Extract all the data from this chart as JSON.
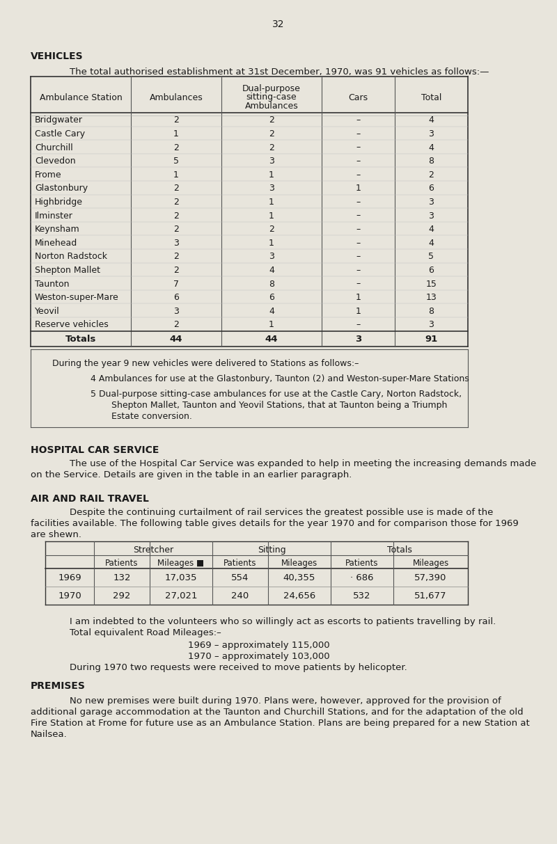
{
  "page_number": "32",
  "bg_color": "#e8e5dc",
  "text_color": "#1a1a1a",
  "section1_heading": "VEHICLES",
  "section1_intro": "The total authorised establishment at 31st December, 1970, was 91 vehicles as follows:—",
  "vehicles_table": {
    "headers": [
      "Ambulance Station",
      "Ambulances",
      "Dual-purpose\nsitting-case\nAmbulances",
      "Cars",
      "Total"
    ],
    "rows": [
      [
        "Bridgwater",
        "2",
        "2",
        "–",
        "4"
      ],
      [
        "Castle Cary",
        "1",
        "2",
        "–",
        "3"
      ],
      [
        "Churchill",
        "2",
        "2",
        "–",
        "4"
      ],
      [
        "Clevedon",
        "5",
        "3",
        "–",
        "8"
      ],
      [
        "Frome",
        "1",
        "1",
        "–",
        "2"
      ],
      [
        "Glastonbury",
        "2",
        "3",
        "1",
        "6"
      ],
      [
        "Highbridge",
        "2",
        "1",
        "–",
        "3"
      ],
      [
        "Ilminster",
        "2",
        "1",
        "–",
        "3"
      ],
      [
        "Keynsham",
        "2",
        "2",
        "–",
        "4"
      ],
      [
        "Minehead",
        "3",
        "1",
        "–",
        "4"
      ],
      [
        "Norton Radstock",
        "2",
        "3",
        "–",
        "5"
      ],
      [
        "Shepton Mallet",
        "2",
        "4",
        "–",
        "6"
      ],
      [
        "Taunton",
        "7",
        "8",
        "–",
        "15"
      ],
      [
        "Weston-super-Mare",
        "6",
        "6",
        "1",
        "13"
      ],
      [
        "Yeovil",
        "3",
        "4",
        "1",
        "8"
      ],
      [
        "Reserve vehicles",
        "2",
        "1",
        "–",
        "3"
      ]
    ],
    "totals_row": [
      "Totals",
      "44",
      "44",
      "3",
      "91"
    ]
  },
  "vehicles_note1": "During the year 9 new vehicles were delivered to Stations as follows:–",
  "vehicles_note2": "4 Ambulances for use at the Glastonbury, Taunton (2) and Weston-super-Mare Stations",
  "vehicles_note3a": "5 Dual-purpose sitting-case ambulances for use at the Castle Cary, Norton Radstock,",
  "vehicles_note3b": "Shepton Mallet, Taunton and Yeovil Stations, that at Taunton being a Triumph",
  "vehicles_note3c": "Estate conversion.",
  "section2_heading": "HOSPITAL CAR SERVICE",
  "section2_text1": "The use of the Hospital Car Service was expanded to help in meeting the increasing demands made",
  "section2_text2": "on the Service. Details are given in the table in an earlier paragraph.",
  "section3_heading": "AIR AND RAIL TRAVEL",
  "section3_text1": "Despite the continuing curtailment of rail services the greatest possible use is made of the",
  "section3_text2": "facilities available. The following table gives details for the year 1970 and for comparison those for 1969",
  "section3_text3": "are shewn.",
  "air_rail_rows": [
    [
      "1969",
      "132",
      "17,035",
      "554",
      "40,355",
      "· 686",
      "57,390"
    ],
    [
      "1970",
      "292",
      "27,021",
      "240",
      "24,656",
      "532",
      "51,677"
    ]
  ],
  "note_rail1": "I am indebted to the volunteers who so willingly act as escorts to patients travelling by rail.",
  "note_rail2": "Total equivalent Road Mileages:–",
  "note_rail3": "1969 – approximately 115,000",
  "note_rail4": "1970 – approximately 103,000",
  "note_rail5": "During 1970 two requests were received to move patients by helicopter.",
  "section4_heading": "PREMISES",
  "section4_text1": "No new premises were built during 1970. Plans were, however, approved for the provision of",
  "section4_text2": "additional garage accommodation at the Taunton and Churchill Stations, and for the adaptation of the old",
  "section4_text3": "Fire Station at Frome for future use as an Ambulance Station. Plans are being prepared for a new Station at",
  "section4_text4": "Nailsea."
}
